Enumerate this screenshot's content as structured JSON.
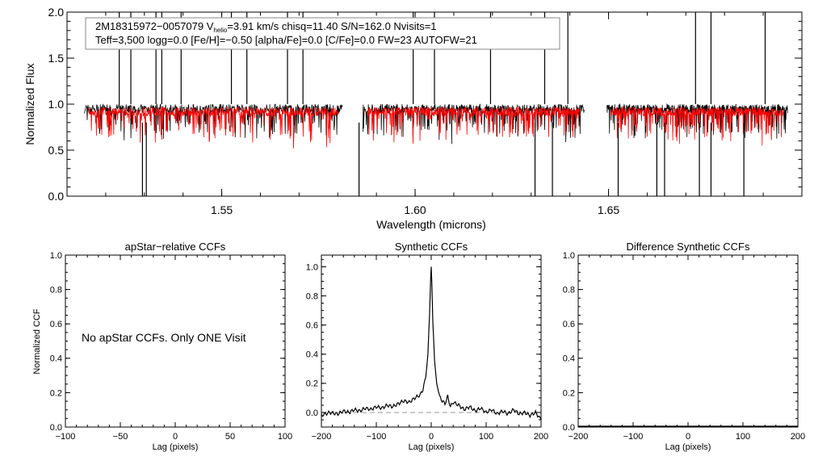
{
  "chart_data": [
    {
      "id": "spectrum",
      "type": "line",
      "xlabel": "Wavelength (microns)",
      "ylabel": "Normalized Flux",
      "xlim": [
        1.51,
        1.7
      ],
      "ylim": [
        0.0,
        2.0
      ],
      "xticks": [
        1.55,
        1.6,
        1.65
      ],
      "xtick_labels": [
        "1.55",
        "1.60",
        "1.65"
      ],
      "yticks": [
        0.0,
        0.5,
        1.0,
        1.5,
        2.0
      ],
      "ytick_labels": [
        "0.0",
        "0.5",
        "1.0",
        "1.5",
        "2.0"
      ],
      "info_line1": {
        "star_id": "2M18315972−0057079",
        "v_label": "V",
        "v_sub": "helio",
        "v_value": "=3.91 km/s",
        "rest": "chisq=11.40  S/N=162.0  Nvisits=1"
      },
      "info_line2": "Teff=3,500 logg=0.0 [Fe/H]=−0.50 [alpha/Fe]=0.0 [C/Fe]=0.0 FW=23 AUTOFW=21",
      "series": [
        {
          "name": "observed",
          "color": "#000000",
          "segments": [
            [
              1.5145,
              1.5812
            ],
            [
              1.5865,
              1.6437
            ],
            [
              1.6496,
              1.6963
            ]
          ],
          "level": 0.95
        },
        {
          "name": "synthetic",
          "color": "#ff0000",
          "segments": [
            [
              1.5155,
              1.5802
            ],
            [
              1.5875,
              1.6427
            ],
            [
              1.6506,
              1.6953
            ]
          ],
          "level": 0.92
        }
      ],
      "spikes_up": [
        1.5235,
        1.5265,
        1.533,
        1.5345,
        1.5395,
        1.5525,
        1.5565,
        1.567,
        1.571,
        1.5995,
        1.605,
        1.6195,
        1.6335,
        1.6395,
        1.6725,
        1.6765,
        1.6905
      ],
      "dips_down": [
        1.5295,
        1.5305,
        1.5855,
        1.631,
        1.6355,
        1.6525,
        1.6625,
        1.6645,
        1.6735,
        1.6765,
        1.685
      ]
    },
    {
      "id": "apstar-ccf",
      "type": "line",
      "title": "apStar−relative CCFs",
      "xlabel": "Lag (pixels)",
      "ylabel": "Normalized CCF",
      "xlim": [
        -100,
        100
      ],
      "ylim": [
        0.0,
        1.0
      ],
      "xticks": [
        -100,
        -50,
        0,
        50,
        100
      ],
      "xtick_labels": [
        "−100",
        "−50",
        "0",
        "50",
        "100"
      ],
      "yticks": [
        0.0,
        0.2,
        0.4,
        0.6,
        0.8,
        1.0
      ],
      "ytick_labels": [
        "0.0",
        "0.2",
        "0.4",
        "0.6",
        "0.8",
        "1.0"
      ],
      "annotation": "No apStar CCFs.  Only ONE Visit",
      "series": []
    },
    {
      "id": "synthetic-ccf",
      "type": "line",
      "title": "Synthetic CCFs",
      "xlabel": "Lag (pixels)",
      "ylabel": "",
      "xlim": [
        -200,
        200
      ],
      "ylim": [
        -0.1,
        1.08
      ],
      "xticks": [
        -200,
        -100,
        0,
        100,
        200
      ],
      "xtick_labels": [
        "−200",
        "−100",
        "0",
        "100",
        "200"
      ],
      "yticks": [
        0.0,
        0.2,
        0.4,
        0.6,
        0.8,
        1.0
      ],
      "ytick_labels": [
        "0.0",
        "0.2",
        "0.4",
        "0.6",
        "0.8",
        "1.0"
      ],
      "zero_line": true,
      "series": [
        {
          "name": "ccf",
          "color": "#000000",
          "x": [
            -200,
            -185,
            -170,
            -160,
            -150,
            -140,
            -130,
            -120,
            -110,
            -100,
            -90,
            -80,
            -70,
            -60,
            -50,
            -40,
            -30,
            -20,
            -15,
            -10,
            -6,
            -3,
            -1,
            0,
            1,
            3,
            6,
            10,
            15,
            20,
            25,
            30,
            35,
            40,
            50,
            60,
            70,
            80,
            90,
            100,
            110,
            120,
            130,
            140,
            150,
            160,
            170,
            180,
            190,
            200
          ],
          "y": [
            -0.02,
            0.0,
            -0.01,
            0.01,
            0.0,
            0.02,
            0.01,
            0.03,
            0.02,
            0.04,
            0.03,
            0.05,
            0.04,
            0.06,
            0.08,
            0.07,
            0.1,
            0.12,
            0.16,
            0.24,
            0.4,
            0.68,
            0.92,
            1.0,
            0.9,
            0.62,
            0.36,
            0.2,
            0.11,
            0.08,
            0.06,
            0.11,
            0.04,
            0.07,
            0.05,
            0.02,
            0.04,
            0.01,
            0.03,
            0.0,
            0.02,
            -0.01,
            0.01,
            -0.01,
            0.02,
            -0.01,
            0.0,
            -0.02,
            0.0,
            -0.05
          ]
        }
      ]
    },
    {
      "id": "difference-ccf",
      "type": "line",
      "title": "Difference Synthetic CCFs",
      "xlabel": "Lag (pixels)",
      "ylabel": "",
      "xlim": [
        -200,
        200
      ],
      "ylim": [
        0.0,
        1.0
      ],
      "xticks": [
        -200,
        -100,
        0,
        100,
        200
      ],
      "xtick_labels": [
        "−200",
        "−100",
        "0",
        "100",
        "200"
      ],
      "yticks": [
        0.0,
        0.2,
        0.4,
        0.6,
        0.8,
        1.0
      ],
      "ytick_labels": [
        "0.0",
        "0.2",
        "0.4",
        "0.6",
        "0.8",
        "1.0"
      ],
      "series": [
        {
          "name": "diff",
          "color": "#000000",
          "x": [
            -200,
            200
          ],
          "y": [
            0.0,
            0.0
          ]
        }
      ]
    }
  ]
}
